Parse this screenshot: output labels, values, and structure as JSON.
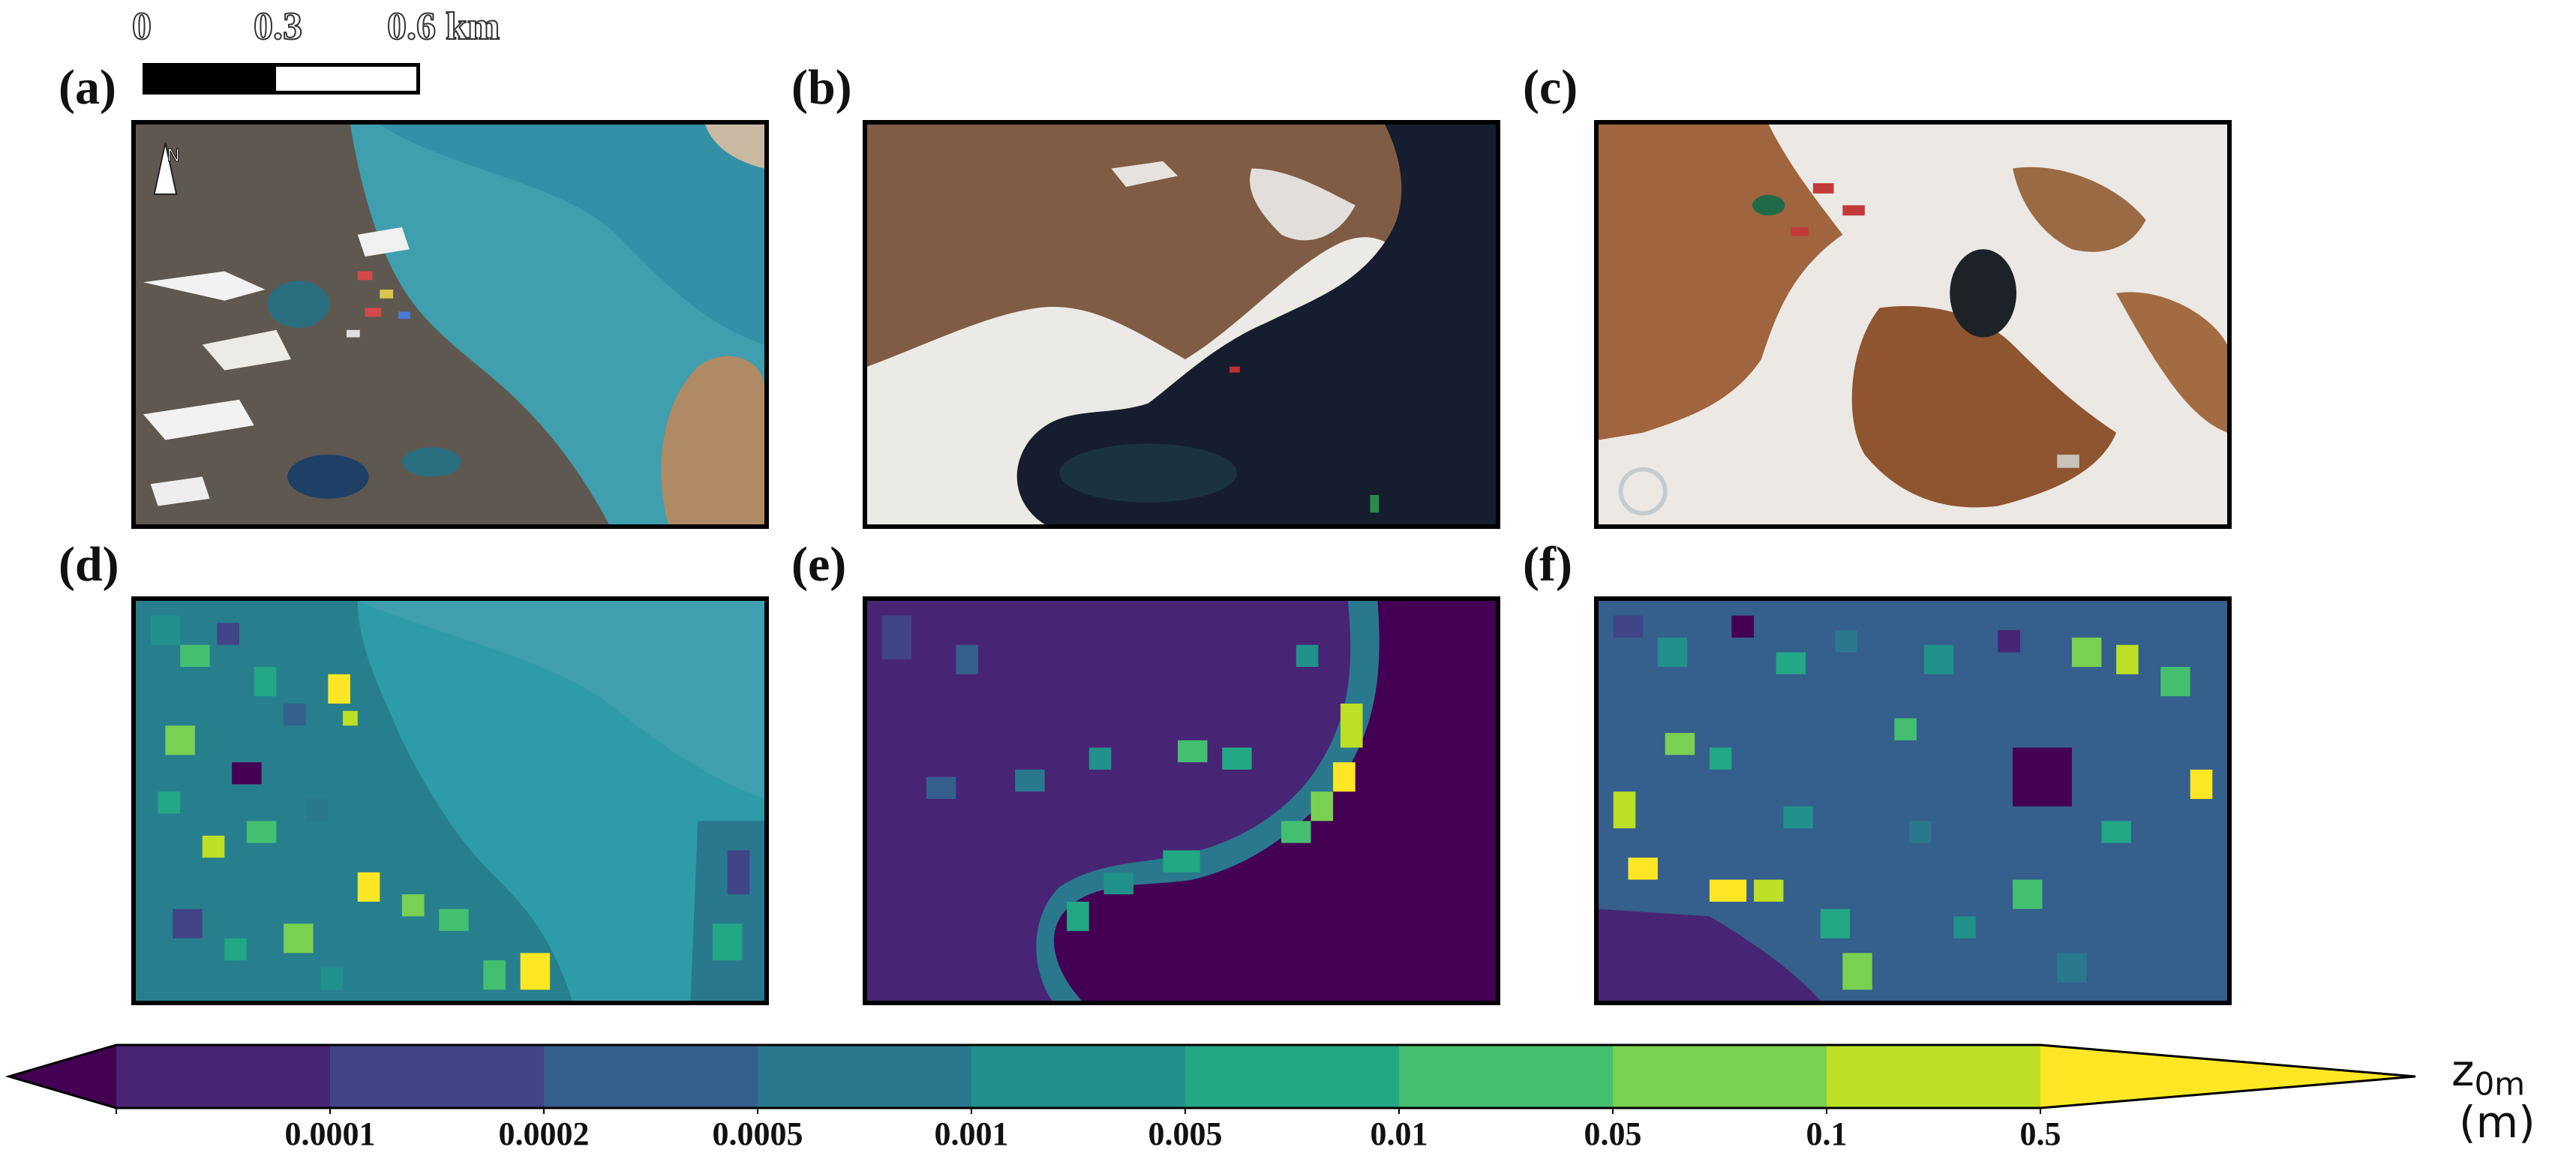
{
  "scalebar": {
    "ticks": [
      "0",
      "0.3",
      "0.6 km"
    ]
  },
  "panels": {
    "a": "(a)",
    "b": "(b)",
    "c": "(c)",
    "d": "(d)",
    "e": "(e)",
    "f": "(f)"
  },
  "north_arrow": "N",
  "colorbar": {
    "ticks": [
      "0.0001",
      "0.0002",
      "0.0005",
      "0.001",
      "0.005",
      "0.01",
      "0.05",
      "0.1",
      "0.5"
    ],
    "colors": [
      "#440154",
      "#482475",
      "#414487",
      "#355f8d",
      "#2a788e",
      "#21918c",
      "#22a884",
      "#44bf70",
      "#7ad151",
      "#bddf26",
      "#fde725"
    ],
    "label": "z",
    "label_sub": "0m",
    "label_unit": "(m)"
  }
}
